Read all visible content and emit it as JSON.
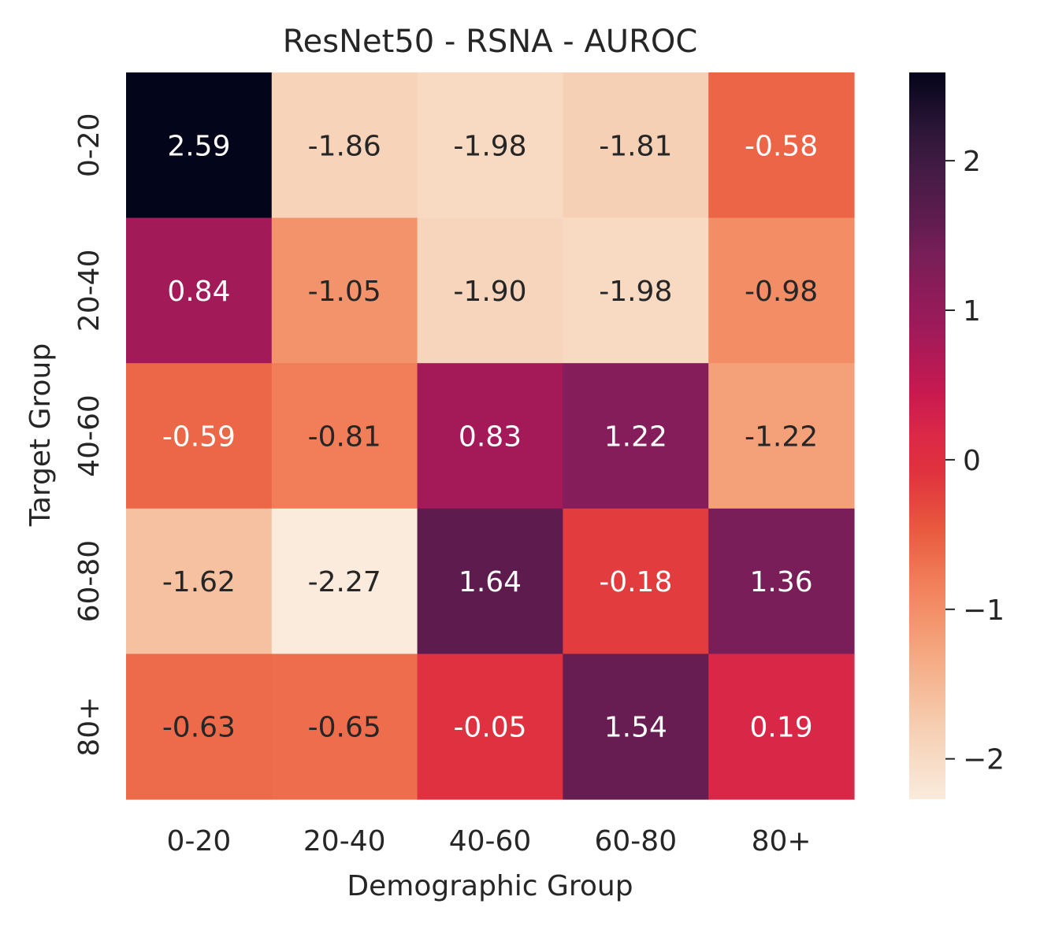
{
  "chart_data": {
    "type": "heatmap",
    "title": "ResNet50 - RSNA - AUROC",
    "xlabel": "Demographic Group",
    "ylabel": "Target Group",
    "x_categories": [
      "0-20",
      "20-40",
      "40-60",
      "60-80",
      "80+"
    ],
    "y_categories": [
      "0-20",
      "20-40",
      "40-60",
      "60-80",
      "80+"
    ],
    "values": [
      [
        2.59,
        -1.86,
        -1.98,
        -1.81,
        -0.58
      ],
      [
        0.84,
        -1.05,
        -1.9,
        -1.98,
        -0.98
      ],
      [
        -0.59,
        -0.81,
        0.83,
        1.22,
        -1.22
      ],
      [
        -1.62,
        -2.27,
        1.64,
        -0.18,
        1.36
      ],
      [
        -0.63,
        -0.65,
        -0.05,
        1.54,
        0.19
      ]
    ],
    "cell_labels": [
      [
        "2.59",
        "-1.86",
        "-1.98",
        "-1.81",
        "-0.58"
      ],
      [
        "0.84",
        "-1.05",
        "-1.90",
        "-1.98",
        "-0.98"
      ],
      [
        "-0.59",
        "-0.81",
        "0.83",
        "1.22",
        "-1.22"
      ],
      [
        "-1.62",
        "-2.27",
        "1.64",
        "-0.18",
        "1.36"
      ],
      [
        "-0.63",
        "-0.65",
        "-0.05",
        "1.54",
        "0.19"
      ]
    ],
    "colorbar": {
      "vmin": -2.27,
      "vmax": 2.59,
      "ticks": [
        2,
        1,
        0,
        -1,
        -2
      ],
      "tick_labels": [
        "2",
        "1",
        "0",
        "−1",
        "−2"
      ],
      "colormap": "rocket_r"
    },
    "grid": false,
    "legend": "colorbar-right"
  }
}
